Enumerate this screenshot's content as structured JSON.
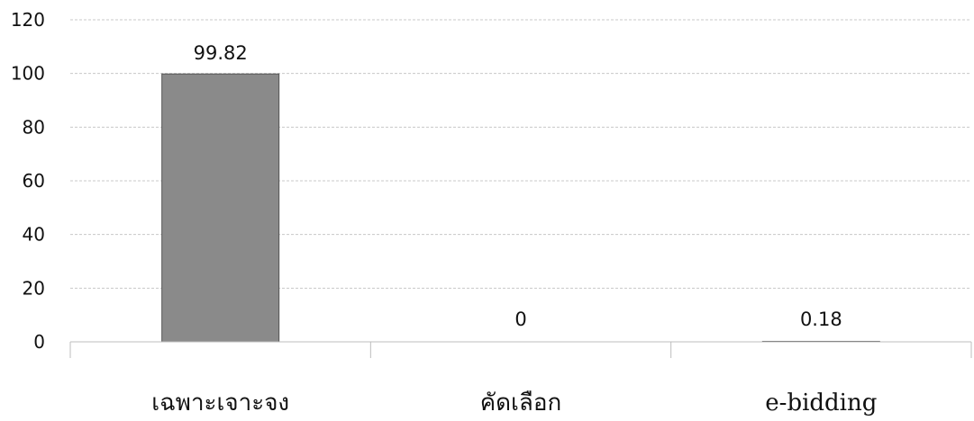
{
  "chart_data": {
    "type": "bar",
    "categories": [
      "เฉพาะเจาะจง",
      "คัดเลือก",
      "e-bidding"
    ],
    "values": [
      99.82,
      0,
      0.18
    ],
    "data_labels": [
      "99.82",
      "0",
      "0.18"
    ],
    "ylim": [
      0,
      120
    ],
    "yticks": [
      0,
      20,
      40,
      60,
      80,
      100,
      120
    ],
    "grid": true,
    "legend": "none",
    "bar_color": "#8a8a8a"
  }
}
